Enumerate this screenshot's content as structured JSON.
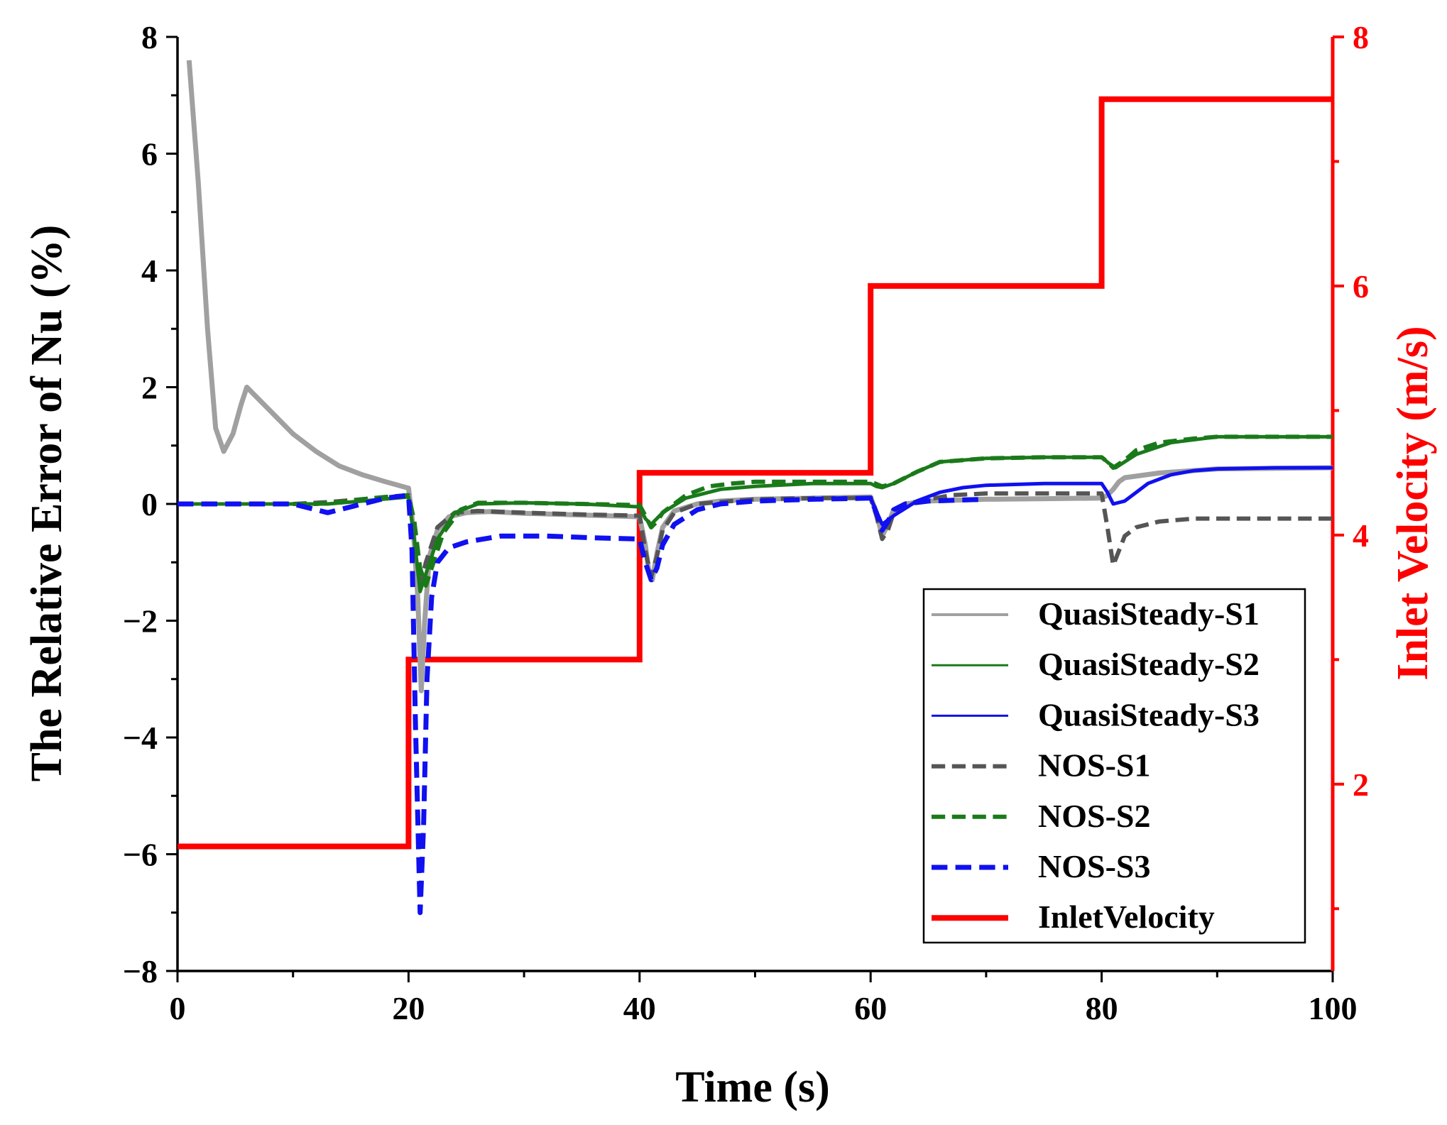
{
  "chart_data": {
    "type": "line",
    "title": "",
    "xlabel": "Time (s)",
    "ylabel": "The Relative Error of  Nu (%)",
    "y2label": "Inlet Velocity (m/s)",
    "xlim": [
      0,
      100
    ],
    "ylim": [
      -8,
      8
    ],
    "y2lim": [
      0.5,
      8
    ],
    "xticks": [
      0,
      20,
      40,
      60,
      80,
      100
    ],
    "xtick_labels": [
      "0",
      "20",
      "40",
      "60",
      "80",
      "100"
    ],
    "yticks": [
      8,
      6,
      4,
      2,
      0,
      -2,
      -4,
      -6,
      -8
    ],
    "ytick_labels": [
      "8",
      "6",
      "4",
      "2",
      "0",
      "−2",
      "−4",
      "−6",
      "−8"
    ],
    "y2ticks": [
      2,
      4,
      6,
      8
    ],
    "y2tick_labels": [
      "2",
      "4",
      "6",
      "8"
    ],
    "legend_position": "bottom-right",
    "series": [
      {
        "name": "QuasiSteady-S1",
        "axis": "left",
        "color": "#a0a0a0",
        "dash": "solid",
        "width": 7,
        "x": [
          1,
          1.8,
          2.6,
          3.3,
          4,
          4.8,
          5.5,
          6,
          8,
          10,
          12,
          14,
          16,
          18,
          20,
          20.4,
          20.8,
          21.1,
          21.4,
          21.8,
          22.5,
          23.5,
          25,
          27,
          30,
          35,
          40,
          40.5,
          40.8,
          41.1,
          41.5,
          42,
          43,
          45,
          47,
          50,
          55,
          60,
          60.5,
          61,
          61.5,
          62,
          63,
          65,
          70,
          75,
          80,
          80.5,
          81,
          81.5,
          82,
          85,
          90,
          100
        ],
        "y": [
          7.6,
          5.5,
          3.0,
          1.3,
          0.9,
          1.2,
          1.7,
          2.0,
          1.6,
          1.2,
          0.9,
          0.65,
          0.5,
          0.38,
          0.27,
          -0.4,
          -1.6,
          -3.2,
          -2.0,
          -0.9,
          -0.45,
          -0.22,
          -0.15,
          -0.13,
          -0.16,
          -0.19,
          -0.22,
          -0.7,
          -1.15,
          -1.3,
          -0.85,
          -0.4,
          -0.12,
          0.0,
          0.05,
          0.08,
          0.1,
          0.12,
          -0.15,
          -0.55,
          -0.35,
          -0.1,
          0.0,
          0.05,
          0.08,
          0.09,
          0.1,
          0.15,
          0.25,
          0.38,
          0.45,
          0.53,
          0.6,
          0.62
        ]
      },
      {
        "name": "QuasiSteady-S2",
        "axis": "left",
        "color": "#1a7a1a",
        "dash": "solid",
        "width": 5,
        "x": [
          0,
          10,
          13,
          16,
          20,
          20.5,
          21,
          21.5,
          22.5,
          24,
          26,
          30,
          35,
          40,
          40.5,
          41,
          42,
          44,
          47,
          50,
          55,
          60,
          60.5,
          61,
          62,
          64,
          66,
          70,
          75,
          80,
          80.6,
          81.2,
          83,
          86,
          90,
          100
        ],
        "y": [
          0.0,
          0.0,
          0.0,
          0.05,
          0.12,
          -0.6,
          -1.5,
          -1.2,
          -0.6,
          -0.15,
          0.0,
          0.02,
          0.0,
          -0.05,
          -0.25,
          -0.35,
          -0.15,
          0.1,
          0.25,
          0.3,
          0.35,
          0.35,
          0.3,
          0.28,
          0.35,
          0.55,
          0.72,
          0.78,
          0.8,
          0.8,
          0.7,
          0.62,
          0.85,
          1.05,
          1.15,
          1.15
        ]
      },
      {
        "name": "QuasiSteady-S3",
        "axis": "left",
        "color": "#1010f0",
        "dash": "solid",
        "width": 5,
        "x": [
          60,
          61,
          62,
          64,
          66,
          68,
          70,
          75,
          80,
          80.5,
          81,
          82,
          83,
          84,
          86,
          88,
          90,
          95,
          100
        ],
        "y": [
          0.1,
          -0.35,
          -0.2,
          0.05,
          0.2,
          0.28,
          0.32,
          0.35,
          0.35,
          0.2,
          0.0,
          0.05,
          0.2,
          0.35,
          0.5,
          0.57,
          0.6,
          0.62,
          0.62
        ]
      },
      {
        "name": "NOS-S1",
        "axis": "left",
        "color": "#555555",
        "dash": "dashed",
        "width": 6,
        "x": [
          10,
          13,
          16,
          20,
          20.5,
          21,
          21.5,
          22.5,
          24,
          26,
          30,
          35,
          40,
          40.5,
          41,
          41.5,
          42,
          43,
          45,
          48,
          50,
          55,
          60,
          60.5,
          61,
          61.5,
          62,
          63,
          65,
          67,
          70,
          75,
          80,
          80.5,
          81,
          81.5,
          82,
          83,
          85,
          88,
          90,
          95,
          100
        ],
        "y": [
          0.0,
          0.03,
          0.08,
          0.15,
          -0.3,
          -1.4,
          -1.0,
          -0.4,
          -0.15,
          -0.12,
          -0.15,
          -0.18,
          -0.2,
          -0.8,
          -1.25,
          -0.9,
          -0.45,
          -0.15,
          0.0,
          0.05,
          0.08,
          0.1,
          0.1,
          -0.2,
          -0.6,
          -0.45,
          -0.15,
          0.0,
          0.08,
          0.15,
          0.18,
          0.18,
          0.18,
          -0.4,
          -1.05,
          -0.8,
          -0.55,
          -0.4,
          -0.3,
          -0.25,
          -0.25,
          -0.25,
          -0.25
        ]
      },
      {
        "name": "NOS-S2",
        "axis": "left",
        "color": "#1a7a1a",
        "dash": "dashed",
        "width": 6,
        "x": [
          10,
          12,
          14,
          16,
          18,
          20,
          20.5,
          21,
          21.5,
          22,
          23,
          24.5,
          26,
          30,
          35,
          40,
          40.5,
          41,
          41.5,
          42,
          44,
          46,
          48,
          50,
          55,
          60,
          61,
          62,
          64,
          66,
          70,
          75,
          80,
          80.5,
          81,
          82,
          83,
          85,
          88,
          90,
          100
        ],
        "y": [
          0.0,
          0.0,
          0.03,
          0.08,
          0.12,
          0.15,
          -0.3,
          -1.1,
          -1.4,
          -1.1,
          -0.5,
          -0.1,
          0.02,
          0.02,
          0.0,
          -0.02,
          -0.2,
          -0.4,
          -0.3,
          -0.15,
          0.15,
          0.3,
          0.35,
          0.38,
          0.38,
          0.38,
          0.3,
          0.35,
          0.55,
          0.72,
          0.78,
          0.8,
          0.8,
          0.72,
          0.62,
          0.75,
          0.92,
          1.05,
          1.12,
          1.15,
          1.15
        ]
      },
      {
        "name": "NOS-S3",
        "axis": "left",
        "color": "#1010f0",
        "dash": "dashed",
        "width": 7,
        "x": [
          0,
          5,
          10,
          12,
          13,
          15,
          18,
          20,
          20.3,
          20.6,
          21,
          21.3,
          21.6,
          22,
          22.5,
          23.5,
          25,
          28,
          32,
          36,
          40,
          40.5,
          41,
          41.5,
          42,
          43,
          45,
          47,
          50,
          55,
          60,
          60.5,
          61,
          61.5,
          62,
          63,
          65,
          70
        ],
        "y": [
          0.0,
          0.0,
          0.0,
          -0.1,
          -0.15,
          -0.05,
          0.1,
          0.15,
          -0.8,
          -3.8,
          -7.0,
          -5.5,
          -3.0,
          -1.6,
          -1.0,
          -0.75,
          -0.65,
          -0.55,
          -0.55,
          -0.58,
          -0.6,
          -1.0,
          -1.3,
          -1.1,
          -0.7,
          -0.35,
          -0.1,
          0.0,
          0.05,
          0.08,
          0.1,
          -0.15,
          -0.45,
          -0.3,
          -0.1,
          0.0,
          0.05,
          0.08
        ]
      },
      {
        "name": "InletVelocity",
        "axis": "right",
        "color": "#ff0000",
        "dash": "solid",
        "width": 8,
        "step": true,
        "x": [
          0,
          20,
          20,
          40,
          40,
          60,
          60,
          80,
          80,
          100
        ],
        "y": [
          1.5,
          1.5,
          3.0,
          3.0,
          4.5,
          4.5,
          6.0,
          6.0,
          7.5,
          7.5
        ]
      }
    ]
  }
}
